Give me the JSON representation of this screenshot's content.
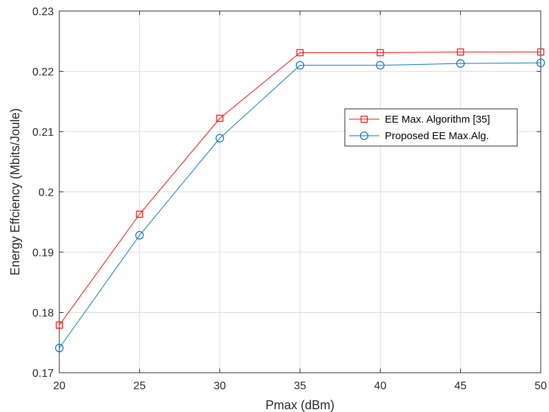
{
  "chart_data": {
    "type": "line",
    "title": "",
    "xlabel": "Pmax (dBm)",
    "ylabel": "Energy Effciency (Mbits/Joule)",
    "x": [
      20,
      25,
      30,
      35,
      40,
      45,
      50
    ],
    "xlim": [
      20,
      50
    ],
    "ylim": [
      0.17,
      0.23
    ],
    "xticks": [
      20,
      25,
      30,
      35,
      40,
      45,
      50
    ],
    "xtick_labels": [
      "20",
      "25",
      "30",
      "35",
      "40",
      "45",
      "50"
    ],
    "yticks": [
      0.17,
      0.18,
      0.19,
      0.2,
      0.21,
      0.22,
      0.23
    ],
    "ytick_labels": [
      "0.17",
      "0.18",
      "0.19",
      "0.2",
      "0.21",
      "0.22",
      "0.23"
    ],
    "grid": true,
    "legend_position": "right",
    "series": [
      {
        "name": "EE Max. Algorithm [35]",
        "values": [
          0.1779,
          0.1963,
          0.2122,
          0.2231,
          0.2231,
          0.2232,
          0.2232
        ],
        "color": "#ff0000",
        "marker": "square"
      },
      {
        "name": "Proposed EE Max.Alg.",
        "values": [
          0.1741,
          0.1928,
          0.2089,
          0.221,
          0.221,
          0.2213,
          0.2214
        ],
        "color": "#0072bd",
        "marker": "circle"
      }
    ]
  }
}
